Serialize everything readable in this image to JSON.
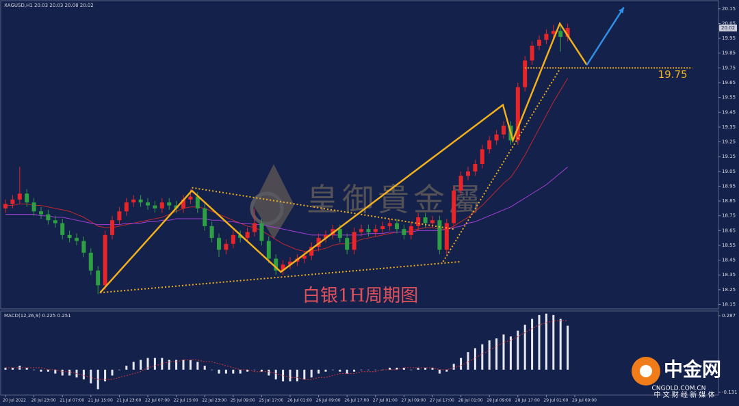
{
  "chart_data": {
    "type": "candlestick",
    "legend_text": "XAGUSD,H1  20.03 20.03 20.08 20.02",
    "watermark": "皇御貴金屬",
    "annotation": "白银1H周期图",
    "up_color": "#e8262a",
    "down_color": "#2ea043",
    "ylim": [
      18.12,
      20.2
    ],
    "yticks": [
      18.15,
      18.25,
      18.35,
      18.45,
      18.55,
      18.65,
      18.75,
      18.85,
      18.95,
      19.05,
      19.15,
      19.25,
      19.35,
      19.45,
      19.55,
      19.65,
      19.75,
      19.85,
      19.95,
      20.05,
      20.15
    ],
    "xticks": [
      "20 Jul 2022",
      "20 Jul 23:00",
      "21 Jul 07:00",
      "21 Jul 15:00",
      "21 Jul 23:00",
      "22 Jul 07:00",
      "22 Jul 15:00",
      "22 Jul 23:00",
      "25 Jul 09:00",
      "25 Jul 17:00",
      "26 Jul 01:00",
      "26 Jul 09:00",
      "26 Jul 17:00",
      "27 Jul 01:00",
      "27 Jul 09:00",
      "27 Jul 17:00",
      "28 Jul 01:00",
      "28 Jul 09:00",
      "28 Jul 17:00",
      "29 Jul 01:00",
      "29 Jul 09:00"
    ],
    "candles": [
      [
        18.8,
        18.86,
        18.77,
        18.83
      ],
      [
        18.83,
        18.89,
        18.8,
        18.86
      ],
      [
        18.86,
        19.08,
        18.83,
        18.9
      ],
      [
        18.9,
        18.93,
        18.81,
        18.84
      ],
      [
        18.84,
        18.87,
        18.75,
        18.78
      ],
      [
        18.78,
        18.81,
        18.73,
        18.76
      ],
      [
        18.76,
        18.79,
        18.69,
        18.72
      ],
      [
        18.72,
        18.75,
        18.67,
        18.7
      ],
      [
        18.7,
        18.73,
        18.59,
        18.62
      ],
      [
        18.62,
        18.65,
        18.57,
        18.6
      ],
      [
        18.6,
        18.63,
        18.55,
        18.58
      ],
      [
        18.58,
        18.61,
        18.47,
        18.5
      ],
      [
        18.5,
        18.53,
        18.35,
        18.38
      ],
      [
        18.38,
        18.41,
        18.22,
        18.28
      ],
      [
        18.28,
        18.65,
        18.25,
        18.62
      ],
      [
        18.62,
        18.75,
        18.59,
        18.72
      ],
      [
        18.72,
        18.81,
        18.69,
        18.78
      ],
      [
        18.78,
        18.87,
        18.75,
        18.84
      ],
      [
        18.84,
        18.89,
        18.81,
        18.86
      ],
      [
        18.86,
        18.89,
        18.81,
        18.84
      ],
      [
        18.84,
        18.87,
        18.79,
        18.82
      ],
      [
        18.82,
        18.85,
        18.77,
        18.8
      ],
      [
        18.8,
        18.87,
        18.77,
        18.84
      ],
      [
        18.84,
        18.87,
        18.79,
        18.82
      ],
      [
        18.82,
        18.85,
        18.77,
        18.8
      ],
      [
        18.8,
        18.89,
        18.77,
        18.86
      ],
      [
        18.86,
        18.93,
        18.83,
        18.88
      ],
      [
        18.88,
        18.91,
        18.77,
        18.8
      ],
      [
        18.8,
        18.83,
        18.65,
        18.68
      ],
      [
        18.68,
        18.71,
        18.57,
        18.6
      ],
      [
        18.6,
        18.63,
        18.47,
        18.52
      ],
      [
        18.52,
        18.59,
        18.49,
        18.56
      ],
      [
        18.56,
        18.65,
        18.53,
        18.62
      ],
      [
        18.62,
        18.65,
        18.57,
        18.6
      ],
      [
        18.6,
        18.67,
        18.57,
        18.64
      ],
      [
        18.64,
        18.8,
        18.61,
        18.7
      ],
      [
        18.7,
        18.73,
        18.55,
        18.58
      ],
      [
        18.58,
        18.61,
        18.43,
        18.46
      ],
      [
        18.46,
        18.49,
        18.35,
        18.38
      ],
      [
        18.38,
        18.45,
        18.35,
        18.42
      ],
      [
        18.42,
        18.47,
        18.39,
        18.44
      ],
      [
        18.44,
        18.49,
        18.41,
        18.46
      ],
      [
        18.46,
        18.51,
        18.43,
        18.48
      ],
      [
        18.48,
        18.57,
        18.45,
        18.54
      ],
      [
        18.54,
        18.63,
        18.51,
        18.6
      ],
      [
        18.6,
        18.65,
        18.57,
        18.62
      ],
      [
        18.62,
        18.69,
        18.59,
        18.66
      ],
      [
        18.66,
        18.69,
        18.57,
        18.6
      ],
      [
        18.6,
        18.63,
        18.49,
        18.52
      ],
      [
        18.52,
        18.67,
        18.49,
        18.64
      ],
      [
        18.64,
        18.69,
        18.61,
        18.66
      ],
      [
        18.66,
        18.69,
        18.61,
        18.64
      ],
      [
        18.64,
        18.69,
        18.61,
        18.66
      ],
      [
        18.66,
        18.71,
        18.63,
        18.68
      ],
      [
        18.68,
        18.73,
        18.65,
        18.7
      ],
      [
        18.7,
        18.73,
        18.63,
        18.66
      ],
      [
        18.66,
        18.69,
        18.59,
        18.62
      ],
      [
        18.62,
        18.71,
        18.59,
        18.68
      ],
      [
        18.68,
        18.77,
        18.65,
        18.74
      ],
      [
        18.74,
        18.77,
        18.67,
        18.7
      ],
      [
        18.7,
        18.75,
        18.67,
        18.72
      ],
      [
        18.72,
        18.75,
        18.49,
        18.52
      ],
      [
        18.52,
        18.73,
        18.49,
        18.7
      ],
      [
        18.7,
        18.95,
        18.67,
        18.92
      ],
      [
        18.92,
        19.05,
        18.89,
        19.02
      ],
      [
        19.02,
        19.08,
        18.99,
        19.05
      ],
      [
        19.05,
        19.13,
        19.02,
        19.1
      ],
      [
        19.1,
        19.23,
        19.07,
        19.2
      ],
      [
        19.2,
        19.29,
        19.17,
        19.26
      ],
      [
        19.26,
        19.33,
        19.23,
        19.3
      ],
      [
        19.3,
        19.39,
        19.27,
        19.36
      ],
      [
        19.36,
        19.39,
        19.23,
        19.26
      ],
      [
        19.26,
        19.65,
        19.23,
        19.62
      ],
      [
        19.62,
        19.83,
        19.59,
        19.8
      ],
      [
        19.8,
        19.93,
        19.77,
        19.9
      ],
      [
        19.9,
        19.97,
        19.87,
        19.94
      ],
      [
        19.94,
        20.01,
        19.91,
        19.98
      ],
      [
        19.98,
        20.04,
        19.95,
        20.0
      ],
      [
        20.0,
        20.03,
        19.86,
        19.96
      ],
      [
        19.96,
        20.05,
        19.93,
        20.02
      ]
    ],
    "moving_averages": [
      {
        "color": "#c0282e",
        "values": [
          18.82,
          18.82,
          18.83,
          18.83,
          18.82,
          18.82,
          18.81,
          18.8,
          18.79,
          18.78,
          18.76,
          18.74,
          18.71,
          18.68,
          18.67,
          18.67,
          18.68,
          18.69,
          18.7,
          18.71,
          18.72,
          18.73,
          18.74,
          18.76,
          18.78,
          18.8,
          18.81,
          18.81,
          18.8,
          18.78,
          18.76,
          18.74,
          18.72,
          18.7,
          18.68,
          18.67,
          18.65,
          18.62,
          18.59,
          18.56,
          18.54,
          18.52,
          18.51,
          18.51,
          18.52,
          18.53,
          18.55,
          18.56,
          18.56,
          18.57,
          18.59,
          18.6,
          18.61,
          18.62,
          18.63,
          18.64,
          18.64,
          18.65,
          18.66,
          18.67,
          18.67,
          18.66,
          18.66,
          18.68,
          18.71,
          18.74,
          18.78,
          18.82,
          18.87,
          18.92,
          18.97,
          19.01,
          19.08,
          19.16,
          19.25,
          19.34,
          19.43,
          19.52,
          19.6,
          19.68
        ]
      },
      {
        "color": "#a23fd6",
        "values": [
          18.76,
          18.76,
          18.76,
          18.76,
          18.76,
          18.75,
          18.75,
          18.74,
          18.74,
          18.73,
          18.72,
          18.71,
          18.7,
          18.69,
          18.69,
          18.69,
          18.69,
          18.7,
          18.7,
          18.7,
          18.71,
          18.71,
          18.72,
          18.72,
          18.73,
          18.73,
          18.73,
          18.73,
          18.73,
          18.72,
          18.72,
          18.71,
          18.71,
          18.7,
          18.7,
          18.69,
          18.69,
          18.68,
          18.67,
          18.66,
          18.65,
          18.64,
          18.63,
          18.62,
          18.62,
          18.62,
          18.62,
          18.62,
          18.62,
          18.62,
          18.62,
          18.63,
          18.63,
          18.63,
          18.64,
          18.64,
          18.64,
          18.64,
          18.65,
          18.65,
          18.65,
          18.65,
          18.66,
          18.67,
          18.68,
          18.7,
          18.71,
          18.73,
          18.75,
          18.77,
          18.79,
          18.81,
          18.84,
          18.87,
          18.9,
          18.93,
          18.96,
          19.0,
          19.04,
          19.08
        ]
      }
    ],
    "zigzag": {
      "color": "#f2b01e",
      "points": [
        [
          13.3,
          18.23
        ],
        [
          26.2,
          18.92
        ],
        [
          38.7,
          18.37
        ],
        [
          69.9,
          19.5
        ],
        [
          71.3,
          19.26
        ],
        [
          77.9,
          20.05
        ],
        [
          81.7,
          19.77
        ]
      ]
    },
    "trendlines": [
      {
        "points": [
          [
            26.2,
            18.94
          ],
          [
            63,
            18.66
          ]
        ]
      },
      {
        "points": [
          [
            13.3,
            18.23
          ],
          [
            64,
            18.44
          ]
        ]
      },
      {
        "points": [
          [
            61.5,
            18.44
          ],
          [
            78,
            19.75
          ]
        ]
      }
    ],
    "level": {
      "value": 19.75,
      "from": 73,
      "to": 96.5
    },
    "arrow": {
      "color": "#2f8fe8",
      "points": [
        [
          81.7,
          19.77
        ],
        [
          86.9,
          20.16
        ]
      ]
    },
    "macd": {
      "label": "MACD(12,26,9) 0.225 0.251",
      "ylim": [
        -0.13,
        0.29
      ],
      "yticks": [
        0.287,
        -0.131
      ],
      "histogram": [
        0.01,
        0.01,
        0.02,
        0.01,
        0.0,
        -0.01,
        -0.01,
        -0.02,
        -0.03,
        -0.03,
        -0.04,
        -0.05,
        -0.07,
        -0.1,
        -0.06,
        -0.03,
        0.0,
        0.02,
        0.04,
        0.05,
        0.06,
        0.06,
        0.06,
        0.05,
        0.05,
        0.05,
        0.05,
        0.04,
        0.02,
        0.0,
        -0.02,
        -0.02,
        -0.02,
        -0.02,
        -0.01,
        0.0,
        -0.01,
        -0.03,
        -0.05,
        -0.06,
        -0.06,
        -0.06,
        -0.05,
        -0.04,
        -0.02,
        -0.01,
        0.0,
        -0.01,
        -0.02,
        -0.01,
        0.0,
        0.0,
        0.0,
        0.0,
        0.01,
        0.01,
        0.01,
        0.0,
        0.01,
        0.01,
        0.01,
        -0.02,
        -0.01,
        0.03,
        0.06,
        0.09,
        0.11,
        0.13,
        0.15,
        0.16,
        0.18,
        0.17,
        0.2,
        0.23,
        0.26,
        0.28,
        0.287,
        0.28,
        0.26,
        0.225
      ],
      "signal": [
        0.01,
        0.01,
        0.01,
        0.01,
        0.01,
        0.01,
        0.0,
        0.0,
        -0.01,
        -0.01,
        -0.02,
        -0.03,
        -0.04,
        -0.05,
        -0.05,
        -0.05,
        -0.04,
        -0.03,
        -0.02,
        -0.01,
        0.01,
        0.02,
        0.03,
        0.04,
        0.04,
        0.05,
        0.05,
        0.05,
        0.04,
        0.04,
        0.03,
        0.02,
        0.01,
        0.0,
        0.0,
        -0.01,
        -0.01,
        -0.01,
        -0.02,
        -0.03,
        -0.04,
        -0.04,
        -0.05,
        -0.05,
        -0.04,
        -0.04,
        -0.03,
        -0.02,
        -0.02,
        -0.02,
        -0.01,
        -0.01,
        -0.01,
        0.0,
        0.0,
        0.0,
        0.01,
        0.01,
        0.01,
        0.01,
        0.01,
        0.0,
        0.0,
        0.01,
        0.02,
        0.04,
        0.06,
        0.08,
        0.1,
        0.12,
        0.14,
        0.15,
        0.17,
        0.19,
        0.21,
        0.23,
        0.24,
        0.25,
        0.25,
        0.251
      ],
      "histogram_color": "#e8e8f0",
      "signal_color": "#d0393e"
    }
  },
  "logo": {
    "name": "中金网",
    "url": "CNGOLD.COM.CN",
    "tagline": "中 文 财 经 新 媒 体"
  }
}
